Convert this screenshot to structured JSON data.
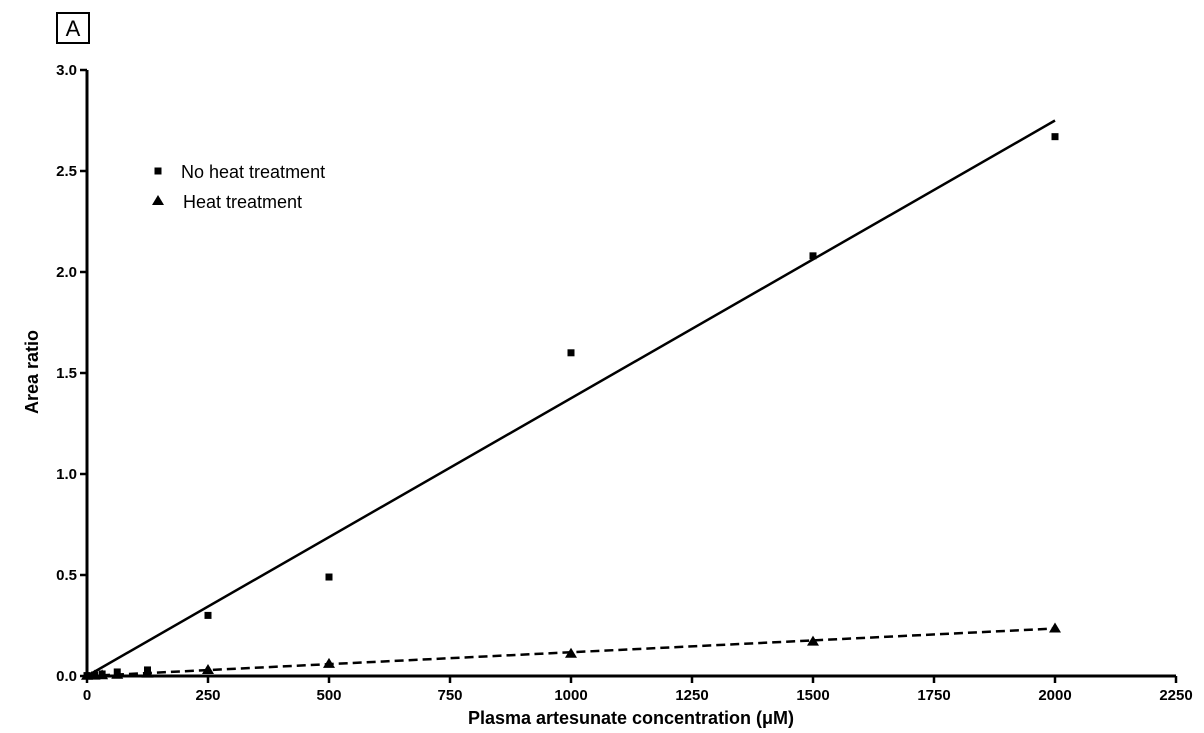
{
  "panel_label": "A",
  "chart_data": {
    "type": "scatter",
    "title": "",
    "xlabel": "Plasma artesunate concentration (μM)",
    "ylabel": "Area ratio",
    "xlim": [
      0,
      2250
    ],
    "ylim": [
      0,
      3.0
    ],
    "xticks": [
      0,
      250,
      500,
      750,
      1000,
      1250,
      1500,
      1750,
      2000,
      2250
    ],
    "yticks": [
      0.0,
      0.5,
      1.0,
      1.5,
      2.0,
      2.5,
      3.0
    ],
    "xtick_labels": [
      "0",
      "250",
      "500",
      "750",
      "1000",
      "1250",
      "1500",
      "1750",
      "2000",
      "2250"
    ],
    "ytick_labels": [
      "0.0",
      "0.5",
      "1.0",
      "1.5",
      "2.0",
      "2.5",
      "3.0"
    ],
    "legend_position": "top-left",
    "grid": false,
    "series": [
      {
        "name": "No heat treatment",
        "marker": "square",
        "x": [
          0,
          15.6,
          31.25,
          62.5,
          125,
          250,
          500,
          1000,
          1500,
          2000
        ],
        "y": [
          0.002,
          0.005,
          0.01,
          0.02,
          0.03,
          0.3,
          0.49,
          1.6,
          2.08,
          2.67
        ],
        "fit": {
          "style": "solid",
          "x": [
            0,
            2000
          ],
          "y": [
            0,
            2.75
          ]
        }
      },
      {
        "name": "Heat treatment",
        "marker": "triangle",
        "x": [
          0,
          15.6,
          31.25,
          62.5,
          125,
          250,
          500,
          1000,
          1500,
          2000
        ],
        "y": [
          0.001,
          0.002,
          0.004,
          0.006,
          0.012,
          0.03,
          0.06,
          0.11,
          0.17,
          0.235
        ],
        "fit": {
          "style": "dashed",
          "x": [
            0,
            2000
          ],
          "y": [
            0,
            0.235
          ]
        }
      }
    ]
  }
}
